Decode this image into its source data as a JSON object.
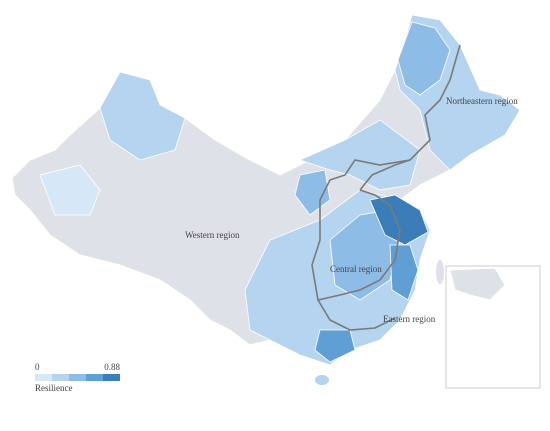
{
  "map": {
    "regions": [
      {
        "label": "Northeastern region"
      },
      {
        "label": "Western region"
      },
      {
        "label": "Central region"
      },
      {
        "label": "Eastern region"
      }
    ],
    "legend": {
      "min": 0,
      "max": 0.88,
      "title": "Resilience",
      "colors": [
        "#d6e8f7",
        "#b4d4ef",
        "#8dbde6",
        "#5f9fd4",
        "#3a7db8"
      ]
    }
  }
}
